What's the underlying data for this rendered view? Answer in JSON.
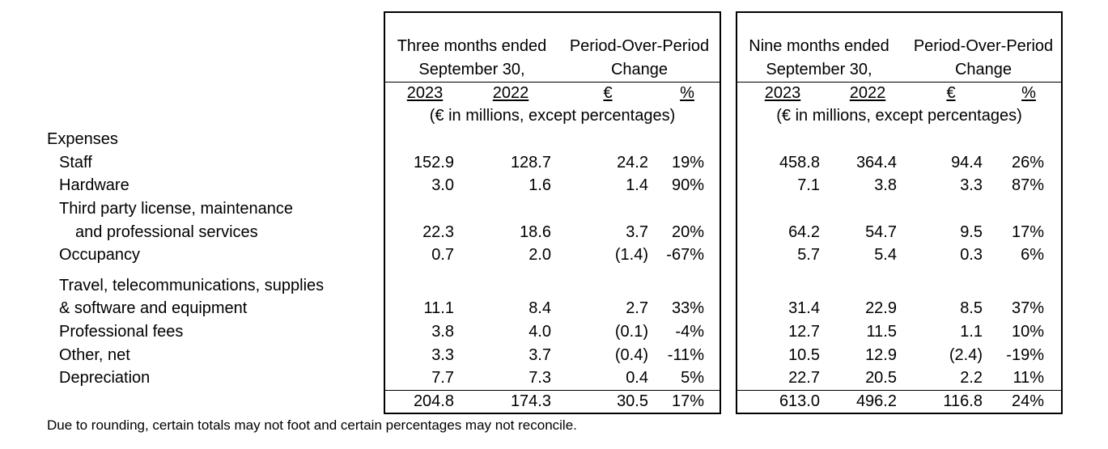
{
  "left_panel": {
    "group_title_line1": "Three months ended",
    "group_title_line2": "September 30,",
    "change_title_line1": "Period-Over-Period",
    "change_title_line2": "Change",
    "col_year1": "2023",
    "col_year2": "2022",
    "col_eur": "€",
    "col_pct": "%",
    "units": "(€ in millions, except percentages)"
  },
  "right_panel": {
    "group_title_line1": "Nine months ended",
    "group_title_line2": "September 30,",
    "change_title_line1": "Period-Over-Period",
    "change_title_line2": "Change",
    "col_year1": "2023",
    "col_year2": "2022",
    "col_eur": "€",
    "col_pct": "%",
    "units": "(€ in millions, except percentages)"
  },
  "section_label": "Expenses",
  "rows": [
    {
      "label": "Staff",
      "three": [
        "152.9",
        "128.7",
        "24.2",
        "19%"
      ],
      "nine": [
        "458.8",
        "364.4",
        "94.4",
        "26%"
      ]
    },
    {
      "label": "Hardware",
      "three": [
        "3.0",
        "1.6",
        "1.4",
        "90%"
      ],
      "nine": [
        "7.1",
        "3.8",
        "3.3",
        "87%"
      ]
    },
    {
      "label": "Third party license, maintenance",
      "three": [
        "",
        "",
        "",
        ""
      ],
      "nine": [
        "",
        "",
        "",
        ""
      ]
    },
    {
      "label": "and professional services",
      "three": [
        "22.3",
        "18.6",
        "3.7",
        "20%"
      ],
      "nine": [
        "64.2",
        "54.7",
        "9.5",
        "17%"
      ]
    },
    {
      "label": "Occupancy",
      "three": [
        "0.7",
        "2.0",
        "(1.4)",
        "-67%"
      ],
      "nine": [
        "5.7",
        "5.4",
        "0.3",
        "6%"
      ]
    },
    {
      "label": "Travel, telecommunications, supplies",
      "three": [
        "",
        "",
        "",
        ""
      ],
      "nine": [
        "",
        "",
        "",
        ""
      ]
    },
    {
      "label": "& software and equipment",
      "three": [
        "11.1",
        "8.4",
        "2.7",
        "33%"
      ],
      "nine": [
        "31.4",
        "22.9",
        "8.5",
        "37%"
      ]
    },
    {
      "label": "Professional fees",
      "three": [
        "3.8",
        "4.0",
        "(0.1)",
        "-4%"
      ],
      "nine": [
        "12.7",
        "11.5",
        "1.1",
        "10%"
      ]
    },
    {
      "label": "Other, net",
      "three": [
        "3.3",
        "3.7",
        "(0.4)",
        "-11%"
      ],
      "nine": [
        "10.5",
        "12.9",
        "(2.4)",
        "-19%"
      ]
    },
    {
      "label": "Depreciation",
      "three": [
        "7.7",
        "7.3",
        "0.4",
        "5%"
      ],
      "nine": [
        "22.7",
        "20.5",
        "2.2",
        "11%"
      ]
    }
  ],
  "total": {
    "three": [
      "204.8",
      "174.3",
      "30.5",
      "17%"
    ],
    "nine": [
      "613.0",
      "496.2",
      "116.8",
      "24%"
    ]
  },
  "footnote": "Due to rounding, certain totals may not foot and certain percentages may not reconcile."
}
